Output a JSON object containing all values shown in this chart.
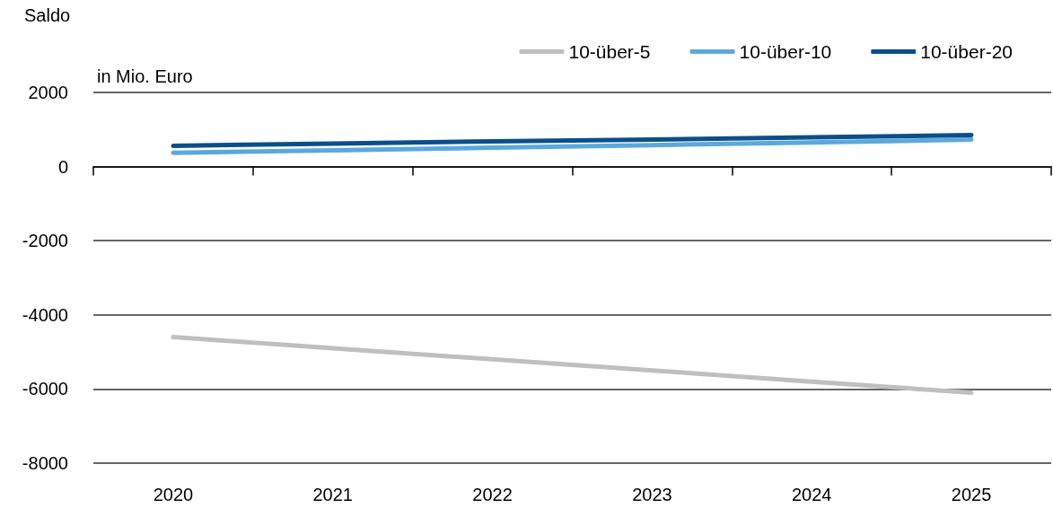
{
  "chart_data": {
    "type": "line",
    "title": "Saldo",
    "ylabel": "in Mio. Euro",
    "categories": [
      "2020",
      "2021",
      "2022",
      "2023",
      "2024",
      "2025"
    ],
    "series": [
      {
        "name": "10-über-5",
        "color": "#bfbfbf",
        "values": [
          -4600,
          -4900,
          -5200,
          -5500,
          -5800,
          -6100
        ]
      },
      {
        "name": "10-über-10",
        "color": "#5ba8dc",
        "values": [
          370,
          440,
          510,
          580,
          650,
          730
        ]
      },
      {
        "name": "10-über-20",
        "color": "#0a4f8a",
        "values": [
          560,
          620,
          680,
          730,
          790,
          850
        ]
      }
    ],
    "ylim": [
      -8000,
      2000
    ],
    "yticks": [
      -8000,
      -6000,
      -4000,
      -2000,
      0,
      2000
    ],
    "grid": "y",
    "legend": "top right",
    "marker": "none",
    "line_style": "solid"
  }
}
